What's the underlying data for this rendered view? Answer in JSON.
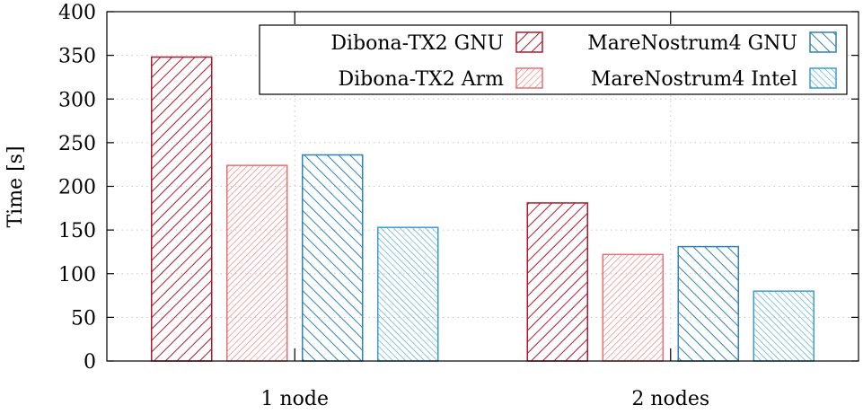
{
  "chart_data": {
    "type": "bar",
    "title": "",
    "xlabel": "",
    "ylabel": "Time [s]",
    "ylim": [
      0,
      400
    ],
    "yticks": [
      "0",
      "50",
      "100",
      "150",
      "200",
      "250",
      "300",
      "350",
      "400"
    ],
    "grid": true,
    "legend_position": "top-right",
    "categories": [
      "1 node",
      "2 nodes"
    ],
    "series": [
      {
        "name": "Dibona-TX2 GNU",
        "values": [
          348,
          181
        ],
        "color": "#b2182b",
        "pattern": "wide-diag-up"
      },
      {
        "name": "Dibona-TX2 Arm",
        "values": [
          224,
          122
        ],
        "color": "#ef6f6f",
        "pattern": "fine-diag-up"
      },
      {
        "name": "MareNostrum4 GNU",
        "values": [
          236,
          131
        ],
        "color": "#2f83b5",
        "pattern": "wide-diag-down"
      },
      {
        "name": "MareNostrum4 Intel",
        "values": [
          153,
          80
        ],
        "color": "#3a9fd0",
        "pattern": "fine-diag-down"
      }
    ]
  }
}
